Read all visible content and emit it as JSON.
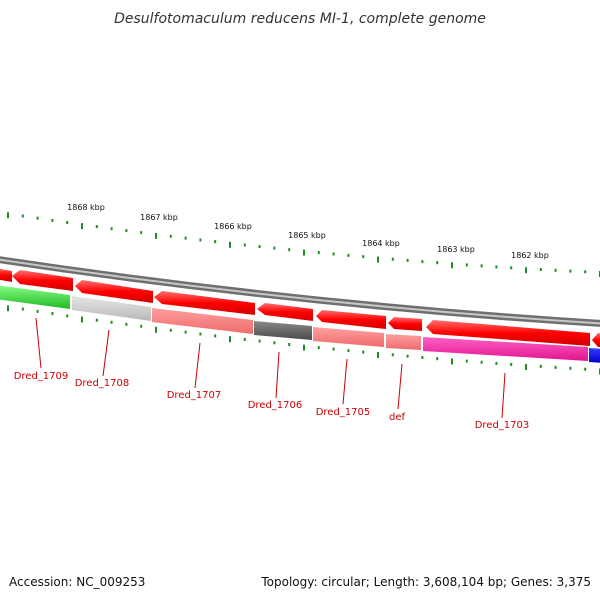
{
  "title": "Desulfotomaculum reducens MI-1, complete genome",
  "footer": {
    "accession": "Accession: NC_009253",
    "topology": "Topology: circular; Length: 3,608,104 bp; Genes: 3,375"
  },
  "scale_labels": [
    "1868 kbp",
    "1867 kbp",
    "1866 kbp",
    "1865 kbp",
    "1864 kbp",
    "1863 kbp",
    "1862 kbp"
  ],
  "gene_labels": [
    "Dred_1709",
    "Dred_1708",
    "Dred_1707",
    "Dred_1706",
    "Dred_1705",
    "def",
    "Dred_1703"
  ],
  "colors": {
    "forward_strand": "#ff0000",
    "backbone": "#888888",
    "tick": "#228b22",
    "label": "#cc0000"
  }
}
